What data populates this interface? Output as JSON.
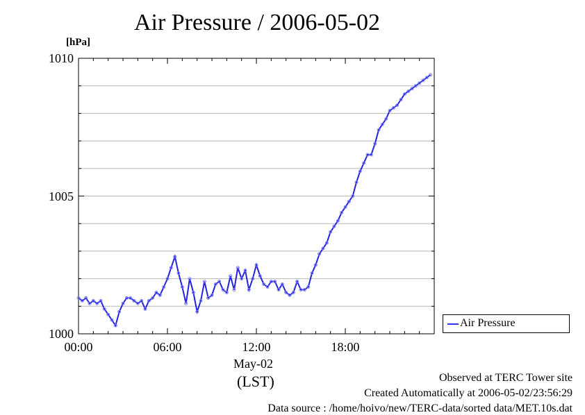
{
  "chart_data": {
    "type": "line",
    "title": "Air Pressure / 2006-05-02",
    "ylabel": "[hPa]",
    "xlabel": "May-02",
    "x_sublabel": "(LST)",
    "ylim": [
      1000,
      1010
    ],
    "xlim_hours": [
      0,
      24
    ],
    "yticks": [
      "1000",
      "1005",
      "1010"
    ],
    "xticks": [
      "00:00",
      "06:00",
      "12:00",
      "18:00"
    ],
    "grid": true,
    "legend_position": "right-bottom",
    "series": [
      {
        "name": "Air Pressure",
        "color": "#3333ff",
        "x_hours": [
          0,
          0.25,
          0.5,
          0.75,
          1.0,
          1.25,
          1.5,
          1.75,
          2.0,
          2.25,
          2.5,
          2.75,
          3.0,
          3.25,
          3.5,
          3.75,
          4.0,
          4.25,
          4.5,
          4.75,
          5.0,
          5.25,
          5.5,
          5.75,
          6.0,
          6.25,
          6.5,
          6.75,
          7.0,
          7.25,
          7.5,
          7.75,
          8.0,
          8.25,
          8.5,
          8.75,
          9.0,
          9.25,
          9.5,
          9.75,
          10.0,
          10.25,
          10.5,
          10.75,
          11.0,
          11.25,
          11.5,
          11.75,
          12.0,
          12.25,
          12.5,
          12.75,
          13.0,
          13.25,
          13.5,
          13.75,
          14.0,
          14.25,
          14.5,
          14.75,
          15.0,
          15.25,
          15.5,
          15.75,
          16.0,
          16.25,
          16.5,
          16.75,
          17.0,
          17.25,
          17.5,
          17.75,
          18.0,
          18.25,
          18.5,
          18.75,
          19.0,
          19.25,
          19.5,
          19.75,
          20.0,
          20.25,
          20.5,
          20.75,
          21.0,
          21.25,
          21.5,
          21.75,
          22.0,
          22.25,
          22.5,
          22.75,
          23.0,
          23.25,
          23.5,
          23.75
        ],
        "values": [
          1001.3,
          1001.2,
          1001.3,
          1001.1,
          1001.2,
          1001.1,
          1001.2,
          1000.9,
          1000.7,
          1000.5,
          1000.3,
          1000.8,
          1001.1,
          1001.3,
          1001.3,
          1001.2,
          1001.1,
          1001.2,
          1000.9,
          1001.2,
          1001.3,
          1001.5,
          1001.4,
          1001.7,
          1002.0,
          1002.4,
          1002.8,
          1002.2,
          1001.7,
          1001.1,
          1002.0,
          1001.5,
          1000.8,
          1001.2,
          1001.9,
          1001.3,
          1001.4,
          1001.8,
          1001.9,
          1001.6,
          1001.5,
          1002.1,
          1001.6,
          1002.4,
          1002.0,
          1002.3,
          1001.6,
          1002.0,
          1002.5,
          1002.1,
          1001.8,
          1001.7,
          1001.9,
          1001.9,
          1001.6,
          1001.8,
          1001.5,
          1001.4,
          1001.5,
          1001.9,
          1001.6,
          1001.6,
          1001.7,
          1002.2,
          1002.5,
          1002.9,
          1003.1,
          1003.3,
          1003.7,
          1003.9,
          1004.1,
          1004.4,
          1004.6,
          1004.8,
          1005.0,
          1005.5,
          1005.9,
          1006.2,
          1006.5,
          1006.5,
          1006.9,
          1007.4,
          1007.6,
          1007.8,
          1008.1,
          1008.2,
          1008.3,
          1008.5,
          1008.7,
          1008.8,
          1008.9,
          1009.0,
          1009.1,
          1009.2,
          1009.3,
          1009.4
        ]
      }
    ]
  },
  "footer": {
    "line1": "Observed at TERC Tower site",
    "line2": "Created Automatically at 2006-05-02/23:56:29",
    "line3": "Data source : /home/hoivo/new/TERC-data/sorted  data/MET.10s.dat"
  }
}
